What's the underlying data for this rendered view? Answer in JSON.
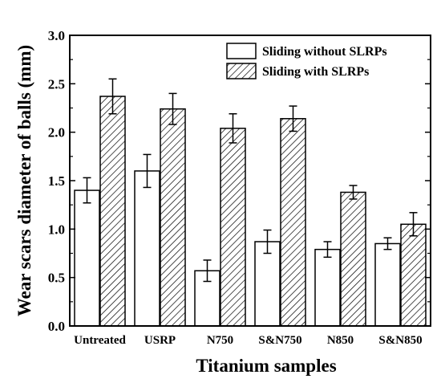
{
  "chart_data": {
    "type": "bar",
    "xlabel": "Titanium samples",
    "ylabel": "Wear scars diameter of balls (mm)",
    "ylim": [
      0,
      3.0
    ],
    "yticks": [
      "0.0",
      "0.5",
      "1.0",
      "1.5",
      "2.0",
      "2.5",
      "3.0"
    ],
    "categories": [
      "Untreated",
      "USRP",
      "N750",
      "S&N750",
      "N850",
      "S&N850"
    ],
    "series": [
      {
        "name": "Sliding without SLRPs",
        "pattern": "solid-white",
        "values": [
          1.4,
          1.6,
          0.57,
          0.87,
          0.79,
          0.85
        ],
        "errors": [
          0.13,
          0.17,
          0.11,
          0.12,
          0.08,
          0.06
        ]
      },
      {
        "name": "Sliding with SLRPs",
        "pattern": "diagonal-hatch",
        "values": [
          2.37,
          2.24,
          2.04,
          2.14,
          1.38,
          1.05
        ],
        "errors": [
          0.18,
          0.16,
          0.15,
          0.13,
          0.07,
          0.12
        ]
      }
    ],
    "legend_position": "top-right",
    "grid": false,
    "colors": {
      "axis": "#000000",
      "bar_fill": "#ffffff",
      "hatch": "#000000"
    }
  }
}
